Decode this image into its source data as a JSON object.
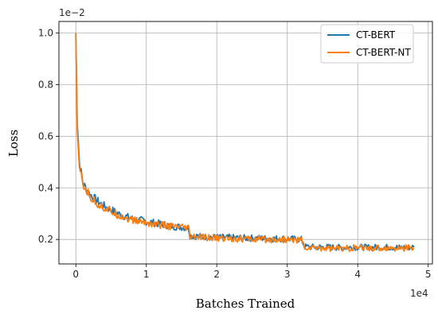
{
  "chart_data": {
    "type": "line",
    "xlabel": "Batches Trained",
    "ylabel": "Loss",
    "x_offset_label": "1e4",
    "y_offset_label": "1e−2",
    "xlim": [
      -0.24,
      5.06
    ],
    "ylim": [
      0.105,
      1.045
    ],
    "xticks": [
      0,
      1,
      2,
      3,
      4,
      5
    ],
    "yticks": [
      0.2,
      0.4,
      0.6,
      0.8,
      1.0
    ],
    "xtick_labels": [
      "0",
      "1",
      "2",
      "3",
      "4",
      "5"
    ],
    "ytick_labels": [
      "0.2",
      "0.4",
      "0.6",
      "0.8",
      "1.0"
    ],
    "grid": true,
    "legend_position": "top-right",
    "series": [
      {
        "name": "CT-BERT",
        "color": "#1f77b4",
        "x": [
          0.0,
          0.02,
          0.05,
          0.1,
          0.15,
          0.2,
          0.3,
          0.4,
          0.5,
          0.6,
          0.7,
          0.8,
          0.9,
          1.0,
          1.1,
          1.2,
          1.3,
          1.4,
          1.5,
          1.6,
          1.62,
          1.7,
          1.8,
          1.9,
          2.0,
          2.2,
          2.4,
          2.6,
          2.8,
          3.0,
          3.15,
          3.2,
          3.25,
          3.4,
          3.6,
          3.8,
          4.0,
          4.2,
          4.4,
          4.6,
          4.8
        ],
        "values": [
          1.0,
          0.65,
          0.5,
          0.42,
          0.395,
          0.375,
          0.35,
          0.33,
          0.315,
          0.3,
          0.29,
          0.28,
          0.275,
          0.27,
          0.265,
          0.26,
          0.255,
          0.25,
          0.248,
          0.245,
          0.215,
          0.213,
          0.21,
          0.21,
          0.208,
          0.207,
          0.205,
          0.205,
          0.203,
          0.203,
          0.2,
          0.2,
          0.172,
          0.17,
          0.17,
          0.168,
          0.17,
          0.169,
          0.17,
          0.168,
          0.17
        ]
      },
      {
        "name": "CT-BERT-NT",
        "color": "#ff7f0e",
        "x": [
          0.0,
          0.02,
          0.05,
          0.1,
          0.15,
          0.2,
          0.3,
          0.4,
          0.5,
          0.6,
          0.7,
          0.8,
          0.9,
          1.0,
          1.1,
          1.2,
          1.3,
          1.4,
          1.5,
          1.6,
          1.62,
          1.7,
          1.8,
          1.9,
          2.0,
          2.2,
          2.4,
          2.6,
          2.8,
          3.0,
          3.15,
          3.2,
          3.25,
          3.4,
          3.6,
          3.8,
          4.0,
          4.2,
          4.4,
          4.6,
          4.8
        ],
        "values": [
          1.0,
          0.62,
          0.48,
          0.41,
          0.39,
          0.365,
          0.34,
          0.322,
          0.308,
          0.295,
          0.285,
          0.275,
          0.27,
          0.265,
          0.26,
          0.256,
          0.252,
          0.248,
          0.245,
          0.242,
          0.21,
          0.209,
          0.207,
          0.206,
          0.205,
          0.204,
          0.202,
          0.2,
          0.2,
          0.199,
          0.198,
          0.197,
          0.168,
          0.167,
          0.166,
          0.165,
          0.167,
          0.166,
          0.167,
          0.166,
          0.168
        ]
      }
    ]
  }
}
